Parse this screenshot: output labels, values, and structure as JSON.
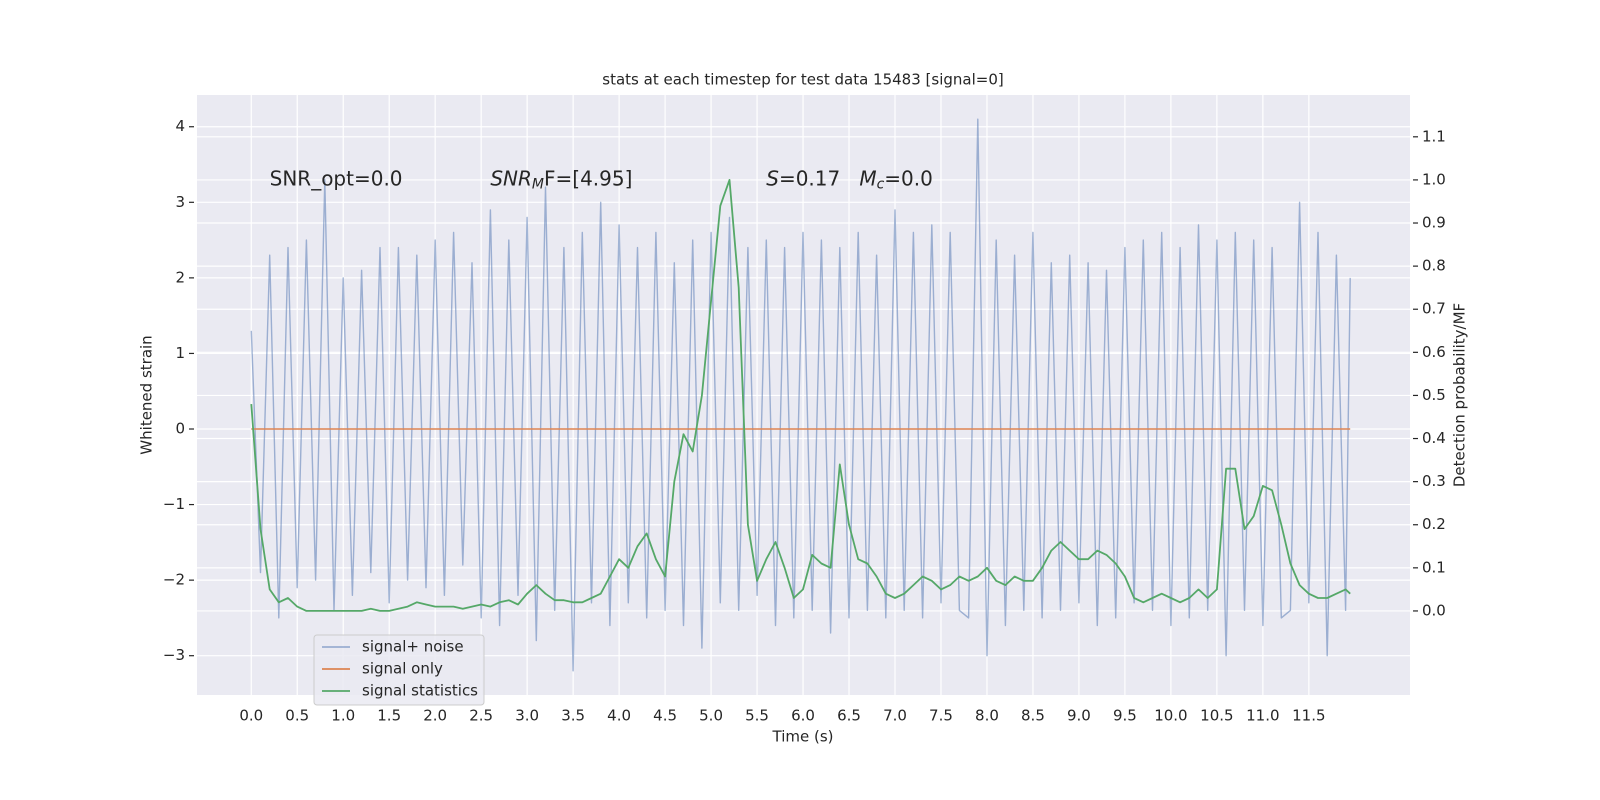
{
  "chart_data": {
    "type": "line",
    "title": "stats at each timestep for test data 15483 [signal=0]",
    "xlabel": "Time (s)",
    "ylabel": "Whitened strain",
    "y2label": "Detection probability/MF",
    "x": [
      0.0,
      0.1,
      0.2,
      0.3,
      0.4,
      0.5,
      0.6,
      0.7,
      0.8,
      0.9,
      1.0,
      1.1,
      1.2,
      1.3,
      1.4,
      1.5,
      1.6,
      1.7,
      1.8,
      1.9,
      2.0,
      2.1,
      2.2,
      2.3,
      2.4,
      2.5,
      2.6,
      2.7,
      2.8,
      2.9,
      3.0,
      3.1,
      3.2,
      3.3,
      3.4,
      3.5,
      3.6,
      3.7,
      3.8,
      3.9,
      4.0,
      4.1,
      4.2,
      4.3,
      4.4,
      4.5,
      4.6,
      4.7,
      4.8,
      4.9,
      5.0,
      5.1,
      5.2,
      5.3,
      5.4,
      5.5,
      5.6,
      5.7,
      5.8,
      5.9,
      6.0,
      6.1,
      6.2,
      6.3,
      6.4,
      6.5,
      6.6,
      6.7,
      6.8,
      6.9,
      7.0,
      7.1,
      7.2,
      7.3,
      7.4,
      7.5,
      7.6,
      7.7,
      7.8,
      7.9,
      8.0,
      8.1,
      8.2,
      8.3,
      8.4,
      8.5,
      8.6,
      8.7,
      8.8,
      8.9,
      9.0,
      9.1,
      9.2,
      9.3,
      9.4,
      9.5,
      9.6,
      9.7,
      9.8,
      9.9,
      10.0,
      10.1,
      10.2,
      10.3,
      10.4,
      10.5,
      10.6,
      10.7,
      10.8,
      10.9,
      11.0,
      11.1,
      11.2,
      11.3,
      11.4,
      11.5,
      11.6,
      11.7,
      11.8,
      11.9,
      11.95
    ],
    "series": [
      {
        "name": "signal+ noise",
        "color": "#4c72b0",
        "opacity": 0.5,
        "values": [
          1.3,
          -1.9,
          2.3,
          -2.5,
          2.4,
          -2.1,
          2.5,
          -2.0,
          3.3,
          -2.4,
          2.0,
          -2.2,
          2.1,
          -1.9,
          2.4,
          -2.3,
          2.4,
          -2.0,
          2.3,
          -2.1,
          2.5,
          -2.2,
          2.6,
          -1.8,
          2.2,
          -2.5,
          2.9,
          -2.6,
          2.5,
          -2.2,
          2.8,
          -2.8,
          3.2,
          -2.4,
          2.4,
          -3.2,
          2.6,
          -2.3,
          3.0,
          -2.6,
          2.7,
          -2.3,
          2.4,
          -2.5,
          2.6,
          -2.4,
          2.2,
          -2.6,
          2.5,
          -2.9,
          2.6,
          -2.3,
          2.8,
          -2.4,
          2.4,
          -2.2,
          2.5,
          -2.6,
          2.4,
          -2.5,
          2.6,
          -2.4,
          2.5,
          -2.7,
          2.4,
          -2.5,
          2.6,
          -2.4,
          2.3,
          -2.5,
          2.9,
          -2.4,
          2.6,
          -2.5,
          2.7,
          -2.3,
          2.6,
          -2.4,
          -2.5,
          4.1,
          -3.0,
          2.5,
          -2.6,
          2.3,
          -2.4,
          2.6,
          -2.5,
          2.2,
          -2.4,
          2.3,
          -2.3,
          2.2,
          -2.6,
          2.1,
          -2.5,
          2.4,
          -2.3,
          2.5,
          -2.4,
          2.6,
          -2.6,
          2.4,
          -2.5,
          2.7,
          -2.4,
          2.5,
          -3.0,
          2.6,
          -2.4,
          2.5,
          -2.6,
          2.4,
          -2.5,
          -2.4,
          3.0,
          -2.3,
          2.6,
          -3.0,
          2.3,
          -2.4,
          2.0
        ]
      },
      {
        "name": "signal only",
        "color": "#dd8452",
        "x": [
          0.0,
          11.95
        ],
        "values": [
          0,
          0
        ]
      },
      {
        "name": "signal statistics",
        "color": "#55a868",
        "axis": "y2",
        "values": [
          0.48,
          0.19,
          0.05,
          0.02,
          0.03,
          0.01,
          0,
          0,
          0,
          0,
          0,
          0,
          0,
          0.005,
          0,
          0,
          0.005,
          0.01,
          0.02,
          0.015,
          0.01,
          0.01,
          0.01,
          0.005,
          0.01,
          0.015,
          0.01,
          0.02,
          0.025,
          0.015,
          0.04,
          0.06,
          0.04,
          0.025,
          0.025,
          0.02,
          0.02,
          0.03,
          0.04,
          0.08,
          0.12,
          0.1,
          0.15,
          0.18,
          0.12,
          0.08,
          0.3,
          0.41,
          0.37,
          0.5,
          0.72,
          0.94,
          1.0,
          0.75,
          0.2,
          0.07,
          0.12,
          0.16,
          0.1,
          0.03,
          0.05,
          0.13,
          0.11,
          0.1,
          0.34,
          0.2,
          0.12,
          0.11,
          0.08,
          0.04,
          0.03,
          0.04,
          0.06,
          0.08,
          0.07,
          0.05,
          0.06,
          0.08,
          0.07,
          0.08,
          0.1,
          0.07,
          0.06,
          0.08,
          0.07,
          0.07,
          0.1,
          0.14,
          0.16,
          0.14,
          0.12,
          0.12,
          0.14,
          0.13,
          0.11,
          0.08,
          0.03,
          0.02,
          0.03,
          0.04,
          0.03,
          0.02,
          0.03,
          0.05,
          0.03,
          0.05,
          0.33,
          0.33,
          0.19,
          0.22,
          0.29,
          0.28,
          0.2,
          0.11,
          0.06,
          0.04,
          0.03,
          0.03,
          0.04,
          0.05,
          0.04
        ]
      }
    ],
    "xlim": [
      -0.59,
      12.6
    ],
    "ylim": [
      -3.52,
      4.42
    ],
    "y2lim": [
      -0.195,
      1.197
    ],
    "xticks": [
      {
        "value": 0,
        "label": "0.0"
      },
      {
        "value": 0.5,
        "label": "0.5"
      },
      {
        "value": 1,
        "label": "1.0"
      },
      {
        "value": 1.5,
        "label": "1.5"
      },
      {
        "value": 2,
        "label": "2.0"
      },
      {
        "value": 2.5,
        "label": "2.5"
      },
      {
        "value": 3,
        "label": "3.0"
      },
      {
        "value": 3.5,
        "label": "3.5"
      },
      {
        "value": 4,
        "label": "4.0"
      },
      {
        "value": 4.5,
        "label": "4.5"
      },
      {
        "value": 5,
        "label": "5.0"
      },
      {
        "value": 5.5,
        "label": "5.5"
      },
      {
        "value": 6,
        "label": "6.0"
      },
      {
        "value": 6.5,
        "label": "6.5"
      },
      {
        "value": 7,
        "label": "7.0"
      },
      {
        "value": 7.5,
        "label": "7.5"
      },
      {
        "value": 8,
        "label": "8.0"
      },
      {
        "value": 8.5,
        "label": "8.5"
      },
      {
        "value": 9,
        "label": "9.0"
      },
      {
        "value": 9.5,
        "label": "9.5"
      },
      {
        "value": 10,
        "label": "10.0"
      },
      {
        "value": 10.5,
        "label": "10.5"
      },
      {
        "value": 11,
        "label": "11.0"
      },
      {
        "value": 11.5,
        "label": "11.5"
      }
    ],
    "yticks": [
      {
        "value": -3,
        "label": "−3"
      },
      {
        "value": -2,
        "label": "−2"
      },
      {
        "value": -1,
        "label": "−1"
      },
      0,
      1,
      2,
      3,
      4
    ],
    "y2ticks": [
      {
        "value": 0,
        "label": "0.0"
      },
      {
        "value": 0.1,
        "label": "0.1"
      },
      {
        "value": 0.2,
        "label": "0.2"
      },
      {
        "value": 0.3,
        "label": "0.3"
      },
      {
        "value": 0.4,
        "label": "0.4"
      },
      {
        "value": 0.5,
        "label": "0.5"
      },
      {
        "value": 0.6,
        "label": "0.6"
      },
      {
        "value": 0.7,
        "label": "0.7"
      },
      {
        "value": 0.8,
        "label": "0.8"
      },
      {
        "value": 0.9,
        "label": "0.9"
      },
      {
        "value": 1.0,
        "label": "1.0"
      },
      {
        "value": 1.1,
        "label": "1.1"
      }
    ],
    "grid": true,
    "legend": "lower left",
    "annotations": [
      {
        "x": 0.2,
        "y": 3.3,
        "parts": [
          {
            "text": "SNR_opt=0.0"
          }
        ]
      },
      {
        "x": 2.6,
        "y": 3.3,
        "parts": [
          {
            "text": "SNR",
            "style": "italic"
          },
          {
            "text": "M",
            "style": "italic-sub"
          },
          {
            "text": "F=[4.95]"
          }
        ]
      },
      {
        "x": 5.6,
        "y": 3.3,
        "parts": [
          {
            "text": "S",
            "style": "italic"
          },
          {
            "text": "=0.17   "
          },
          {
            "text": "M",
            "style": "italic"
          },
          {
            "text": "c",
            "style": "italic-sub"
          },
          {
            "text": "=0.0"
          }
        ]
      }
    ]
  }
}
